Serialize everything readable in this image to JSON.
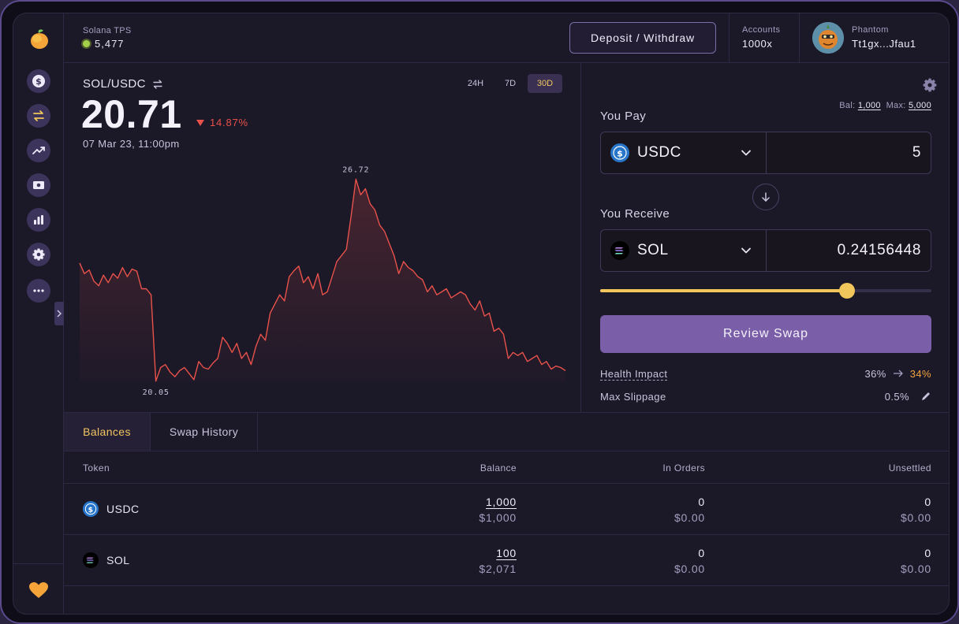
{
  "app": {
    "tps_label": "Solana TPS",
    "tps_value": "5,477"
  },
  "header": {
    "deposit_label": "Deposit / Withdraw",
    "accounts_label": "Accounts",
    "accounts_value": "1000x",
    "wallet_name": "Phantom",
    "wallet_address": "Tt1gx...Jfau1"
  },
  "sidebar": {
    "items": [
      {
        "icon": "dollar-coin-icon"
      },
      {
        "icon": "swap-arrows-icon"
      },
      {
        "icon": "trending-up-icon"
      },
      {
        "icon": "cash-icon"
      },
      {
        "icon": "bar-chart-icon"
      },
      {
        "icon": "gear-icon"
      },
      {
        "icon": "more-icon"
      }
    ],
    "footer_icon": "heart-icon"
  },
  "chart": {
    "pair": "SOL/USDC",
    "price": "20.71",
    "change": "14.87%",
    "date": "07 Mar 23, 11:00pm",
    "ranges": [
      "24H",
      "7D",
      "30D"
    ],
    "active_range": "30D",
    "high_label": "26.72",
    "low_label": "20.05"
  },
  "chart_data": {
    "type": "line",
    "series": [
      {
        "values": [
          23.95,
          23.6,
          23.72,
          23.35,
          23.2,
          23.55,
          23.3,
          23.6,
          23.45,
          23.8,
          23.5,
          23.75,
          23.68,
          23.1,
          23.1,
          22.9,
          20.05,
          20.5,
          20.6,
          20.35,
          20.2,
          20.4,
          20.5,
          20.3,
          20.1,
          20.7,
          20.5,
          20.45,
          20.65,
          20.8,
          21.5,
          21.3,
          21.0,
          21.3,
          20.8,
          21.0,
          20.6,
          21.2,
          21.6,
          21.4,
          22.3,
          22.6,
          22.9,
          22.7,
          23.5,
          23.7,
          23.85,
          23.3,
          23.5,
          23.1,
          23.6,
          22.9,
          23.0,
          23.5,
          24.0,
          24.2,
          24.4,
          25.5,
          26.72,
          26.2,
          26.4,
          25.9,
          25.7,
          25.2,
          25.0,
          24.6,
          24.2,
          23.6,
          24.0,
          23.8,
          23.7,
          23.5,
          23.4,
          23.0,
          23.2,
          22.9,
          23.0,
          23.1,
          22.8,
          22.9,
          23.0,
          22.9,
          22.6,
          22.4,
          22.7,
          22.2,
          22.3,
          21.7,
          21.8,
          21.6,
          20.8,
          21.0,
          20.9,
          21.0,
          20.7,
          20.8,
          20.9,
          20.6,
          20.7,
          20.45,
          20.55,
          20.5,
          20.4
        ]
      }
    ],
    "ylim": [
      19.5,
      27.3
    ]
  },
  "swap": {
    "you_pay_label": "You Pay",
    "bal_label": "Bal:",
    "bal_value": "1,000",
    "max_label": "Max:",
    "max_value": "5,000",
    "pay_token": "USDC",
    "pay_amount": "5",
    "you_receive_label": "You Receive",
    "receive_token": "SOL",
    "receive_amount": "0.24156448",
    "slider_fraction": 0.745,
    "review_label": "Review Swap",
    "health_label": "Health Impact",
    "health_from": "36%",
    "health_to": "34%",
    "slippage_label": "Max Slippage",
    "slippage_value": "0.5%"
  },
  "bottom": {
    "tabs": [
      "Balances",
      "Swap History"
    ],
    "columns": [
      "Token",
      "Balance",
      "In Orders",
      "Unsettled"
    ],
    "rows": [
      {
        "token": "USDC",
        "balance": "1,000",
        "balance_usd": "$1,000",
        "orders": "0",
        "orders_usd": "$0.00",
        "unsettled": "0",
        "unsettled_usd": "$0.00"
      },
      {
        "token": "SOL",
        "balance": "100",
        "balance_usd": "$2,071",
        "orders": "0",
        "orders_usd": "$0.00",
        "unsettled": "0",
        "unsettled_usd": "$0.00"
      }
    ]
  },
  "colors": {
    "accent": "#f1c65a",
    "primary": "#7a5fa8",
    "negative": "#e8524a",
    "orange": "#f1a340"
  }
}
